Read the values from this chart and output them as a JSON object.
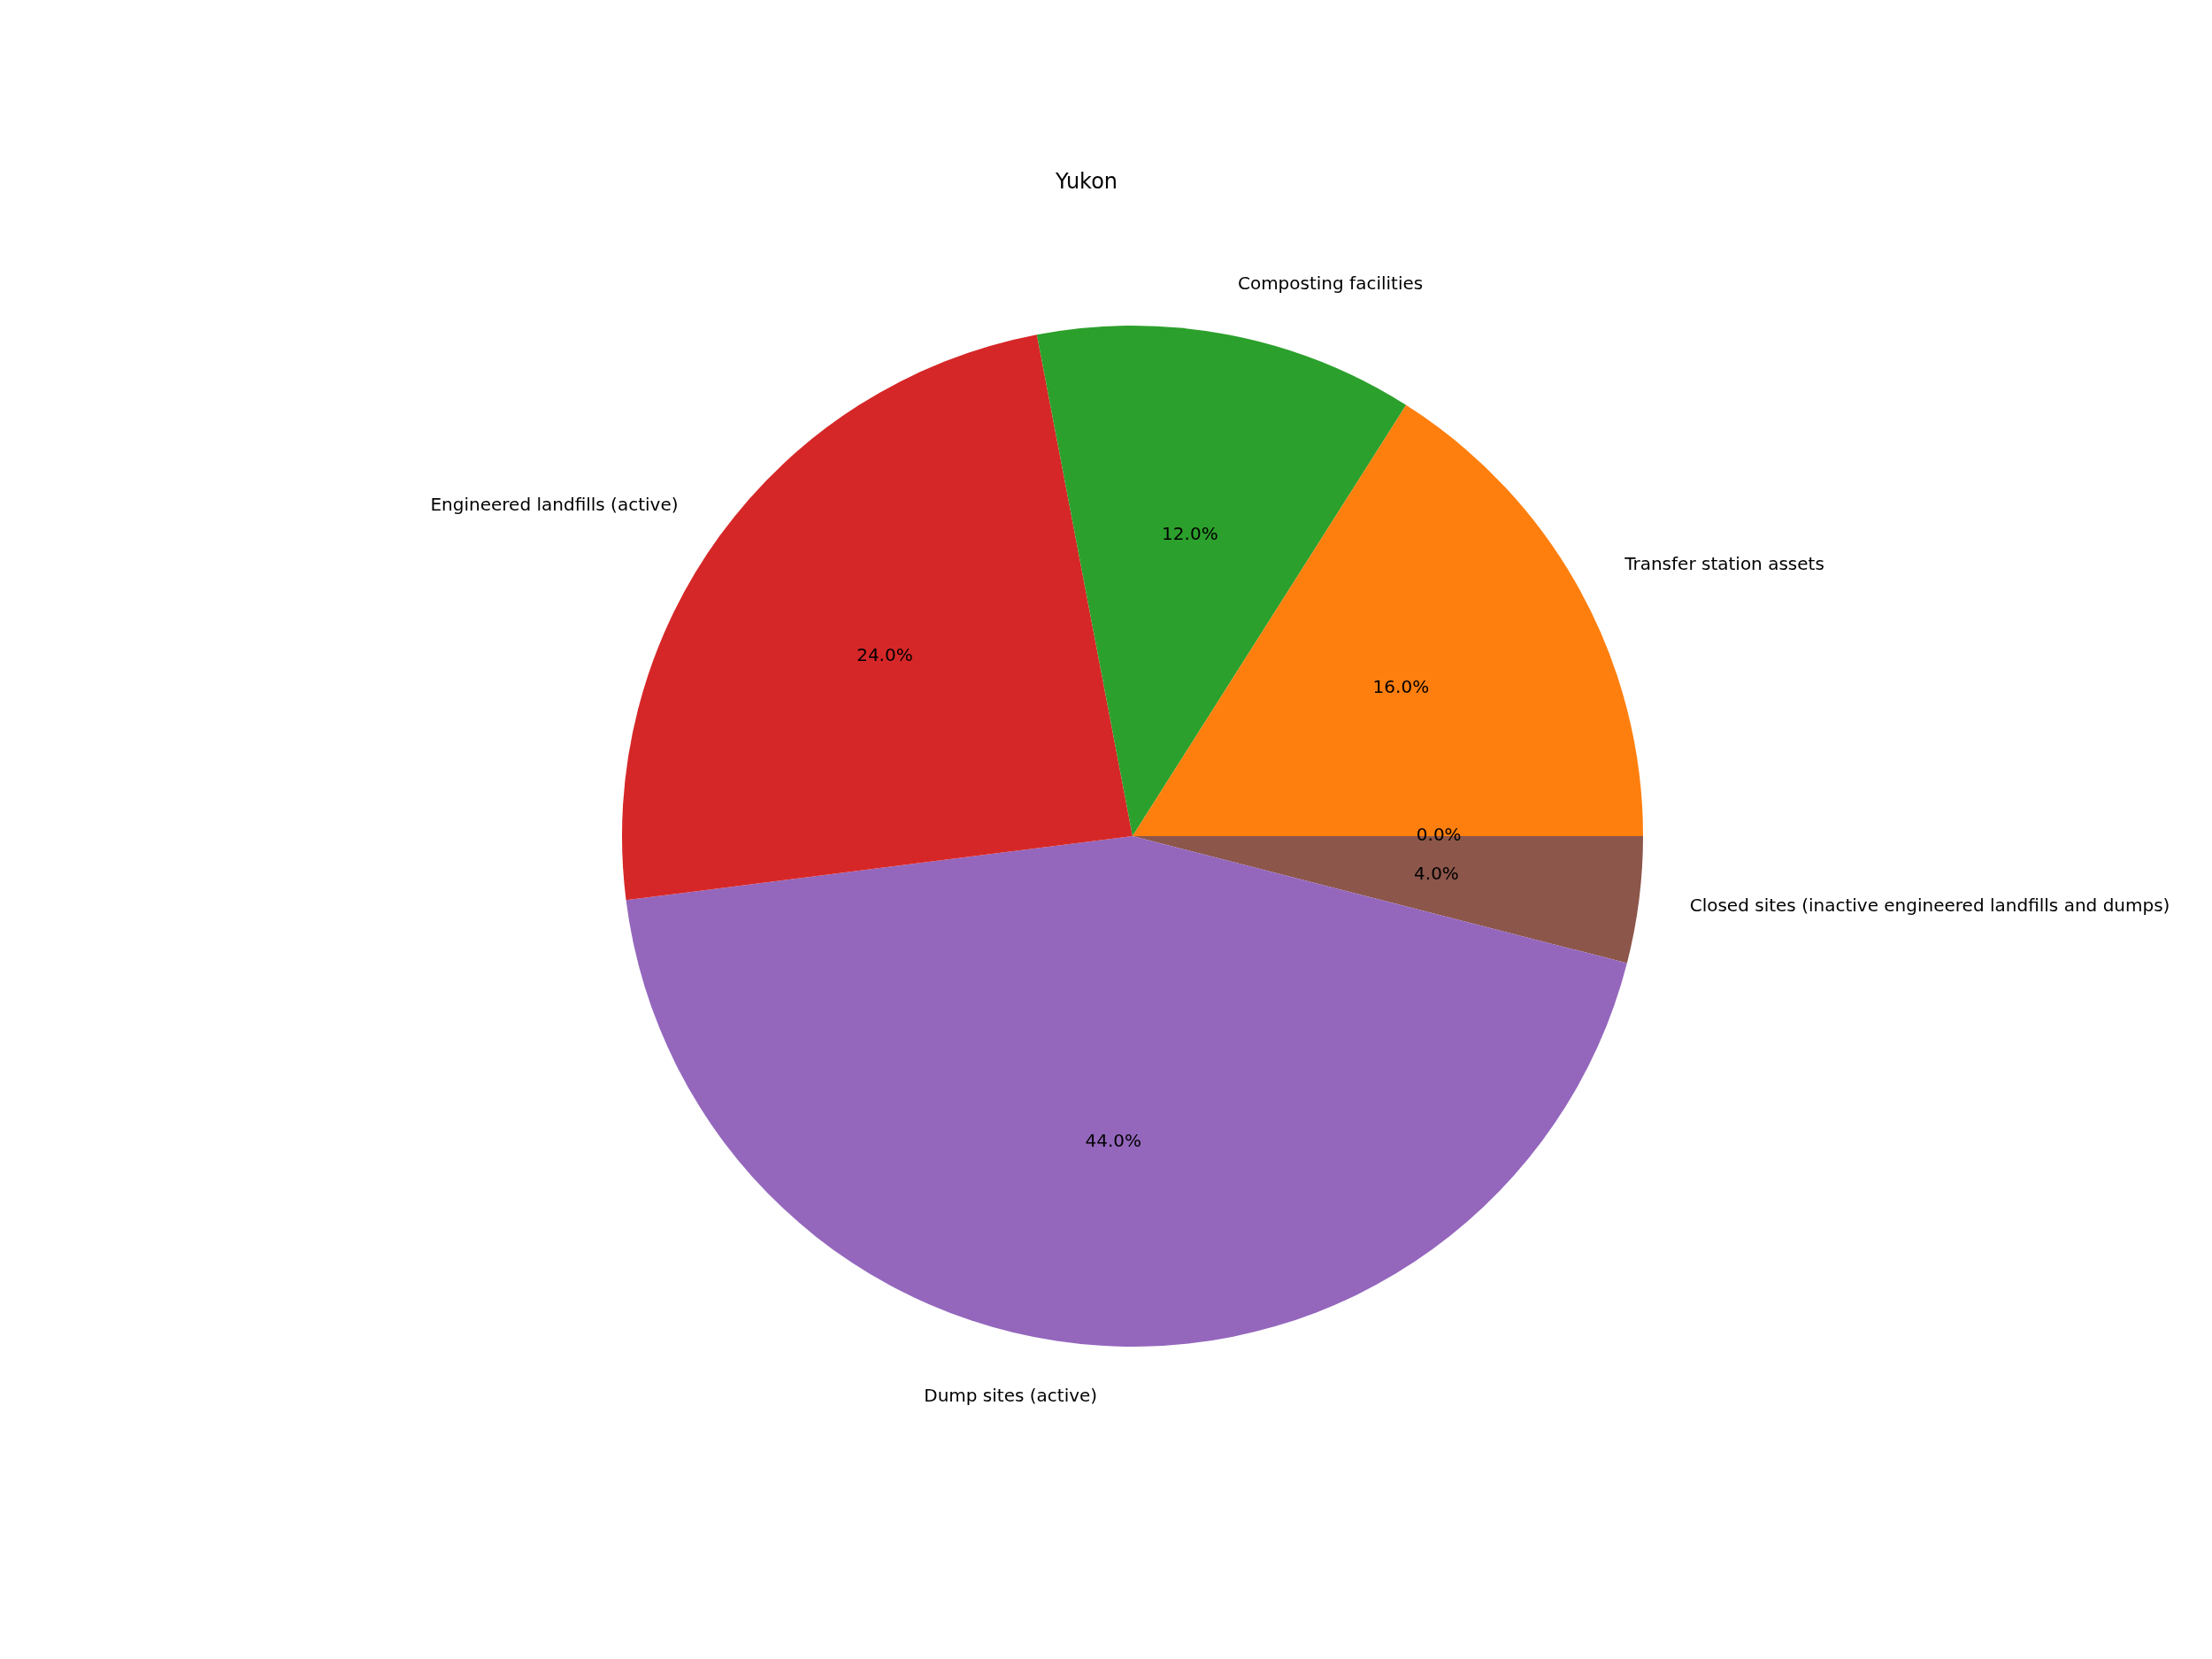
{
  "chart_data": {
    "type": "pie",
    "title": "Yukon",
    "categories": [
      null,
      "Transfer station assets",
      "Composting facilities",
      "Engineered landfills (active)",
      "Dump sites (active)",
      "Closed sites (inactive engineered landfills and dumps)"
    ],
    "values": [
      0,
      16,
      12,
      24,
      44,
      4
    ],
    "colors": [
      "#1f77b4",
      "#ff7f0e",
      "#2ca02c",
      "#d62728",
      "#9467bd",
      "#8c564b"
    ],
    "value_labels": [
      "0.0%",
      "16.0%",
      "12.0%",
      "24.0%",
      "44.0%",
      "4.0%"
    ],
    "legend": false
  }
}
